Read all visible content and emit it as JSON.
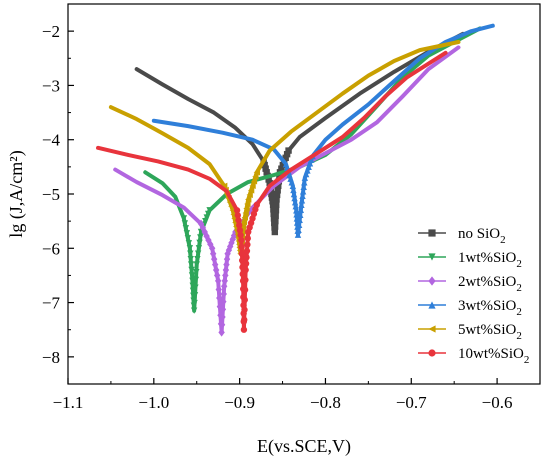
{
  "chart_data": {
    "type": "line",
    "xlabel": "E(vs.SCE,V)",
    "ylabel": "lg (J,A/cm²)",
    "xlim": [
      -1.1,
      -0.55
    ],
    "ylim": [
      -8.5,
      -1.5
    ],
    "xticks": [
      -1.1,
      -1.0,
      -0.9,
      -0.8,
      -0.7,
      -0.6
    ],
    "xtick_labels": [
      "−1.1",
      "−1.0",
      "−0.9",
      "−0.8",
      "−0.7",
      "−0.6"
    ],
    "yticks": [
      -8,
      -7,
      -6,
      -5,
      -4,
      -3,
      -2
    ],
    "ytick_labels": [
      "−8",
      "−7",
      "−6",
      "−5",
      "−4",
      "−3",
      "−2"
    ],
    "legend_position": "right-center",
    "series": [
      {
        "name": "no SiO₂",
        "legend_prefix": "no SiO",
        "legend_sub": "2",
        "color": "#4a4a4a",
        "marker": "square",
        "points": [
          [
            -1.02,
            -2.7
          ],
          [
            -0.99,
            -2.98
          ],
          [
            -0.96,
            -3.25
          ],
          [
            -0.93,
            -3.5
          ],
          [
            -0.905,
            -3.78
          ],
          [
            -0.885,
            -4.08
          ],
          [
            -0.872,
            -4.4
          ],
          [
            -0.865,
            -4.8
          ],
          [
            -0.861,
            -5.2
          ],
          [
            -0.859,
            -5.7
          ],
          [
            -0.857,
            -5.1
          ],
          [
            -0.853,
            -4.6
          ],
          [
            -0.843,
            -4.2
          ],
          [
            -0.83,
            -3.95
          ],
          [
            -0.8,
            -3.6
          ],
          [
            -0.76,
            -3.15
          ],
          [
            -0.72,
            -2.75
          ],
          [
            -0.68,
            -2.38
          ],
          [
            -0.64,
            -2.05
          ]
        ]
      },
      {
        "name": "1wt%SiO₂",
        "legend_prefix": "1wt%SiO",
        "legend_sub": "2",
        "color": "#2ea65a",
        "marker": "triangle-down",
        "points": [
          [
            -1.01,
            -4.6
          ],
          [
            -0.99,
            -4.8
          ],
          [
            -0.975,
            -5.05
          ],
          [
            -0.965,
            -5.45
          ],
          [
            -0.958,
            -6.0
          ],
          [
            -0.955,
            -6.6
          ],
          [
            -0.953,
            -7.15
          ],
          [
            -0.95,
            -6.3
          ],
          [
            -0.945,
            -5.7
          ],
          [
            -0.935,
            -5.3
          ],
          [
            -0.915,
            -5.0
          ],
          [
            -0.89,
            -4.78
          ],
          [
            -0.86,
            -4.65
          ],
          [
            -0.83,
            -4.5
          ],
          [
            -0.8,
            -4.28
          ],
          [
            -0.77,
            -3.9
          ],
          [
            -0.74,
            -3.38
          ],
          [
            -0.71,
            -2.85
          ],
          [
            -0.68,
            -2.45
          ],
          [
            -0.65,
            -2.2
          ],
          [
            -0.62,
            -1.95
          ]
        ]
      },
      {
        "name": "2wt%SiO₂",
        "legend_prefix": "2wt%SiO",
        "legend_sub": "2",
        "color": "#b266e0",
        "marker": "diamond",
        "points": [
          [
            -1.045,
            -4.55
          ],
          [
            -1.02,
            -4.78
          ],
          [
            -0.99,
            -5.02
          ],
          [
            -0.965,
            -5.25
          ],
          [
            -0.945,
            -5.55
          ],
          [
            -0.932,
            -6.0
          ],
          [
            -0.925,
            -6.6
          ],
          [
            -0.921,
            -7.55
          ],
          [
            -0.918,
            -6.7
          ],
          [
            -0.914,
            -6.1
          ],
          [
            -0.905,
            -5.7
          ],
          [
            -0.885,
            -5.25
          ],
          [
            -0.86,
            -4.85
          ],
          [
            -0.83,
            -4.5
          ],
          [
            -0.8,
            -4.25
          ],
          [
            -0.77,
            -4.0
          ],
          [
            -0.74,
            -3.68
          ],
          [
            -0.71,
            -3.2
          ],
          [
            -0.68,
            -2.7
          ],
          [
            -0.645,
            -2.3
          ]
        ]
      },
      {
        "name": "3wt%SiO₂",
        "legend_prefix": "3wt%SiO",
        "legend_sub": "2",
        "color": "#2f7fd9",
        "marker": "triangle-up",
        "points": [
          [
            -1.0,
            -3.65
          ],
          [
            -0.96,
            -3.75
          ],
          [
            -0.92,
            -3.87
          ],
          [
            -0.885,
            -4.0
          ],
          [
            -0.86,
            -4.18
          ],
          [
            -0.846,
            -4.45
          ],
          [
            -0.838,
            -4.85
          ],
          [
            -0.834,
            -5.3
          ],
          [
            -0.832,
            -5.75
          ],
          [
            -0.828,
            -5.2
          ],
          [
            -0.824,
            -4.7
          ],
          [
            -0.815,
            -4.3
          ],
          [
            -0.8,
            -4.0
          ],
          [
            -0.78,
            -3.72
          ],
          [
            -0.75,
            -3.35
          ],
          [
            -0.72,
            -2.92
          ],
          [
            -0.69,
            -2.5
          ],
          [
            -0.66,
            -2.2
          ],
          [
            -0.63,
            -2.0
          ],
          [
            -0.605,
            -1.9
          ]
        ]
      },
      {
        "name": "5wt%SiO₂",
        "legend_prefix": "5wt%SiO",
        "legend_sub": "2",
        "color": "#c9a000",
        "marker": "triangle-left",
        "points": [
          [
            -1.05,
            -3.4
          ],
          [
            -1.02,
            -3.62
          ],
          [
            -0.99,
            -3.88
          ],
          [
            -0.96,
            -4.15
          ],
          [
            -0.935,
            -4.45
          ],
          [
            -0.918,
            -4.85
          ],
          [
            -0.908,
            -5.3
          ],
          [
            -0.902,
            -5.75
          ],
          [
            -0.899,
            -6.1
          ],
          [
            -0.896,
            -5.6
          ],
          [
            -0.89,
            -5.1
          ],
          [
            -0.88,
            -4.6
          ],
          [
            -0.865,
            -4.2
          ],
          [
            -0.84,
            -3.85
          ],
          [
            -0.81,
            -3.5
          ],
          [
            -0.78,
            -3.15
          ],
          [
            -0.75,
            -2.82
          ],
          [
            -0.72,
            -2.55
          ],
          [
            -0.69,
            -2.35
          ],
          [
            -0.645,
            -2.2
          ]
        ]
      },
      {
        "name": "10wt%SiO₂",
        "legend_prefix": "10wt%SiO",
        "legend_sub": "2",
        "color": "#e8343c",
        "marker": "circle",
        "points": [
          [
            -1.065,
            -4.15
          ],
          [
            -1.03,
            -4.28
          ],
          [
            -0.995,
            -4.4
          ],
          [
            -0.96,
            -4.55
          ],
          [
            -0.935,
            -4.72
          ],
          [
            -0.915,
            -4.95
          ],
          [
            -0.903,
            -5.3
          ],
          [
            -0.898,
            -5.85
          ],
          [
            -0.896,
            -6.6
          ],
          [
            -0.895,
            -7.5
          ],
          [
            -0.893,
            -6.4
          ],
          [
            -0.89,
            -5.7
          ],
          [
            -0.88,
            -5.2
          ],
          [
            -0.865,
            -4.85
          ],
          [
            -0.84,
            -4.55
          ],
          [
            -0.81,
            -4.25
          ],
          [
            -0.78,
            -3.95
          ],
          [
            -0.755,
            -3.6
          ],
          [
            -0.73,
            -3.2
          ],
          [
            -0.705,
            -2.85
          ],
          [
            -0.68,
            -2.6
          ],
          [
            -0.66,
            -2.4
          ]
        ]
      }
    ]
  }
}
